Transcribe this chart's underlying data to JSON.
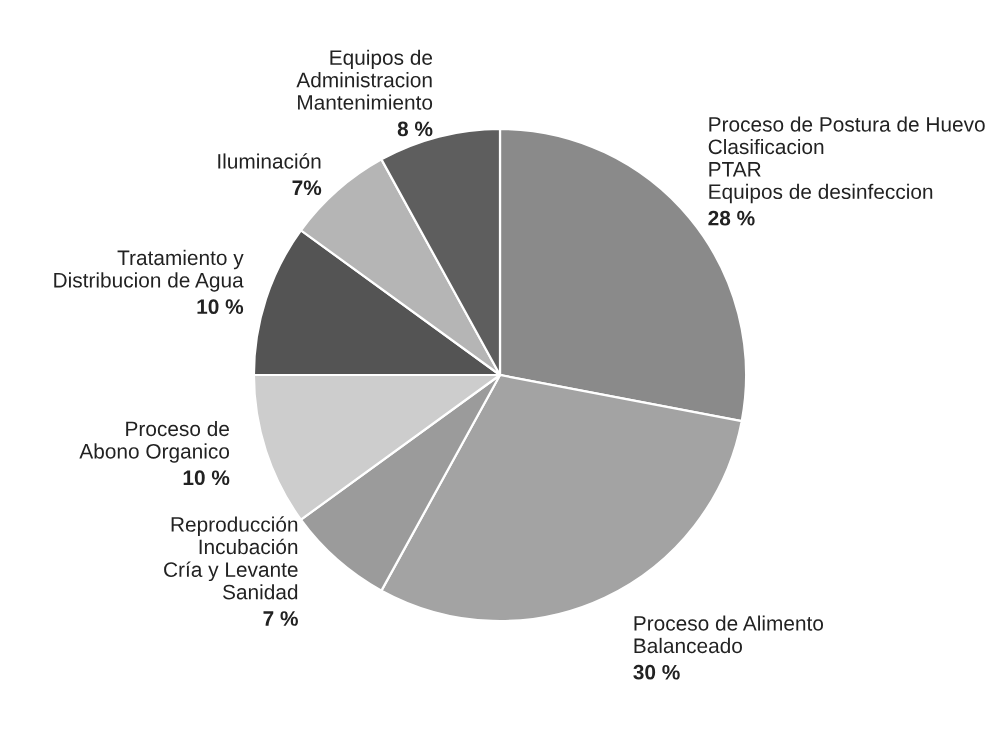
{
  "chart_data": {
    "type": "pie",
    "categories": [
      "Proceso de Postura de Huevo\nClasificacion\nPTAR\nEquipos de desinfeccion",
      "Proceso de Alimento\nBalanceado",
      "Reproducción\nIncubación\nCría y Levante\nSanidad",
      "Proceso de\nAbono Organico",
      "Tratamiento y\nDistribucion de Agua",
      "Iluminación",
      "Equipos de\nAdministracion\nMantenimiento"
    ],
    "values": [
      28,
      30,
      7,
      10,
      10,
      7,
      8
    ],
    "value_labels": [
      "28 %",
      "30 %",
      "7 %",
      "10 %",
      "10 %",
      "7%",
      "8 %"
    ],
    "colors": [
      "#8a8a8a",
      "#a3a3a3",
      "#9b9b9b",
      "#cdcdcd",
      "#545454",
      "#b5b5b5",
      "#5e5e5e"
    ]
  }
}
